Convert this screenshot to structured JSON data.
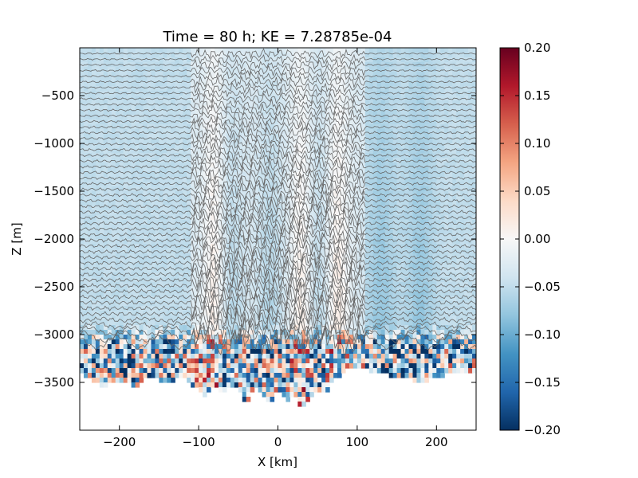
{
  "chart_data": {
    "type": "heatmap",
    "title": "Time = 80 h; KE = 7.28785e-04",
    "xlabel": "X [km]",
    "ylabel": "Z [m]",
    "xlim": [
      -250,
      250
    ],
    "ylim": [
      -4000,
      0
    ],
    "x_ticks": [
      -200,
      -100,
      0,
      100,
      200
    ],
    "x_tick_labels": [
      "−200",
      "−100",
      "0",
      "100",
      "200"
    ],
    "y_ticks": [
      -500,
      -1000,
      -1500,
      -2000,
      -2500,
      -3000,
      -3500
    ],
    "y_tick_labels": [
      "−500",
      "−1000",
      "−1500",
      "−2000",
      "−2500",
      "−3000",
      "−3500"
    ],
    "colorbar": {
      "colormap": "RdBu_r",
      "vmin": -0.2,
      "vmax": 0.2,
      "ticks": [
        0.2,
        0.15,
        0.1,
        0.05,
        0.0,
        -0.05,
        -0.1,
        -0.15,
        -0.2
      ],
      "tick_labels": [
        "0.20",
        "0.15",
        "0.10",
        "0.05",
        "0.00",
        "−0.05",
        "−0.10",
        "−0.15",
        "−0.20"
      ]
    },
    "isopycnal_contours": {
      "count": 52,
      "z_top": -60,
      "z_bottom": -3080,
      "color": "#666666",
      "wave_band_x": [
        -110,
        110
      ]
    },
    "bottom_depth_profile": {
      "x": [
        -250,
        -220,
        -200,
        -180,
        -160,
        -140,
        -120,
        -100,
        -90,
        -80,
        -70,
        -60,
        -50,
        -40,
        -30,
        -20,
        -10,
        0,
        10,
        20,
        30,
        40,
        50,
        60,
        70,
        80,
        90,
        100,
        120,
        140,
        160,
        180,
        200,
        220,
        250
      ],
      "z": [
        -3380,
        -3520,
        -3450,
        -3520,
        -3400,
        -3500,
        -3420,
        -3560,
        -3620,
        -3480,
        -3600,
        -3500,
        -3560,
        -3700,
        -3520,
        -3620,
        -3720,
        -3560,
        -3680,
        -3600,
        -3780,
        -3640,
        -3540,
        -3620,
        -3440,
        -3400,
        -3330,
        -3300,
        -3360,
        -3400,
        -3420,
        -3480,
        -3420,
        -3380,
        -3350
      ]
    },
    "velocity_field_description": {
      "background": "near zero, faintly blue on the flanks (about -0.02 to -0.05)",
      "positive_columns_x": [
        -80,
        30,
        75
      ],
      "negative_columns_x": [
        -60,
        -10,
        50,
        130,
        180
      ]
    }
  },
  "colors": {
    "contour": "#666666",
    "axis": "#000000"
  }
}
